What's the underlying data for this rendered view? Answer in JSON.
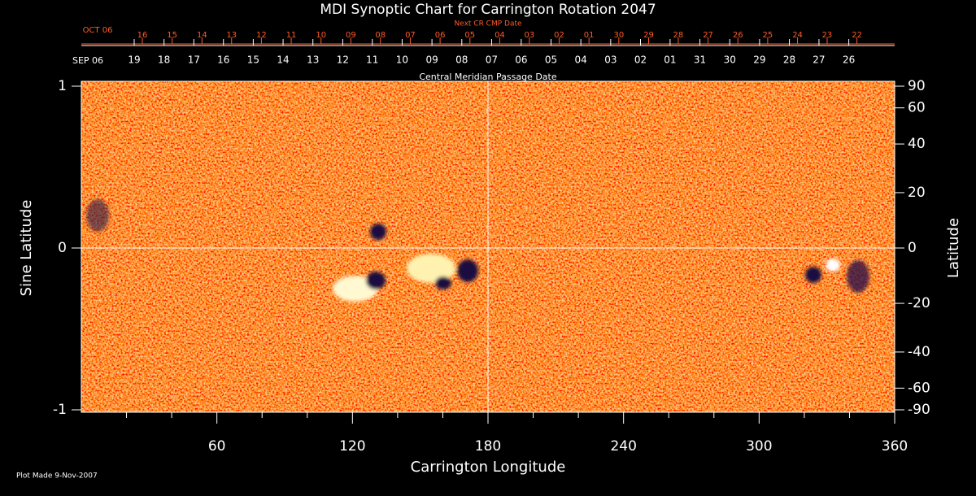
{
  "chart_data": {
    "type": "synoptic-map",
    "title": "MDI Synoptic Chart for Carrington Rotation 2047",
    "xlabel": "Carrington Longitude",
    "ylabel": "Sine Latitude",
    "y2label": "Latitude",
    "footer": "Plot Made  9-Nov-2007",
    "xlim": [
      0,
      360
    ],
    "xticks": [
      60,
      120,
      180,
      240,
      300,
      360
    ],
    "xminorticks": [
      20,
      40,
      80,
      100,
      140,
      160,
      200,
      220,
      260,
      280,
      320,
      340
    ],
    "ylim": [
      -1,
      1
    ],
    "yticks": [
      -1,
      0,
      1
    ],
    "y2scale": "sine",
    "y2lim": [
      -90,
      90
    ],
    "y2ticks": [
      90,
      60,
      40,
      20,
      0,
      -20,
      -40,
      -60,
      -90
    ],
    "crosshair": [
      180,
      0
    ],
    "top_axis_upper": {
      "title": "Next CR CMP Date",
      "start_label": "OCT 06",
      "color": "#ff5a2a",
      "ticks": [
        {
          "value": 27.0,
          "label": "16"
        },
        {
          "value": 40.2,
          "label": "15"
        },
        {
          "value": 53.4,
          "label": "14"
        },
        {
          "value": 66.5,
          "label": "13"
        },
        {
          "value": 79.7,
          "label": "12"
        },
        {
          "value": 92.9,
          "label": "11"
        },
        {
          "value": 106.1,
          "label": "10"
        },
        {
          "value": 119.3,
          "label": "09"
        },
        {
          "value": 132.4,
          "label": "08"
        },
        {
          "value": 145.6,
          "label": "07"
        },
        {
          "value": 158.8,
          "label": "06"
        },
        {
          "value": 172.0,
          "label": "05"
        },
        {
          "value": 185.2,
          "label": "04"
        },
        {
          "value": 198.3,
          "label": "03"
        },
        {
          "value": 211.5,
          "label": "02"
        },
        {
          "value": 224.7,
          "label": "01"
        },
        {
          "value": 237.9,
          "label": "30"
        },
        {
          "value": 251.1,
          "label": "29"
        },
        {
          "value": 264.2,
          "label": "28"
        },
        {
          "value": 277.4,
          "label": "27"
        },
        {
          "value": 290.6,
          "label": "26"
        },
        {
          "value": 303.8,
          "label": "25"
        },
        {
          "value": 317.0,
          "label": "24"
        },
        {
          "value": 330.1,
          "label": "23"
        },
        {
          "value": 343.3,
          "label": "22"
        }
      ]
    },
    "top_axis_lower": {
      "title": "Central Meridian Passage Date",
      "start_label": "SEP 06",
      "color": "#ffffff",
      "ticks": [
        {
          "value": 23.4,
          "label": "19"
        },
        {
          "value": 36.6,
          "label": "18"
        },
        {
          "value": 49.8,
          "label": "17"
        },
        {
          "value": 62.9,
          "label": "16"
        },
        {
          "value": 76.1,
          "label": "15"
        },
        {
          "value": 89.3,
          "label": "14"
        },
        {
          "value": 102.5,
          "label": "13"
        },
        {
          "value": 115.7,
          "label": "12"
        },
        {
          "value": 128.8,
          "label": "11"
        },
        {
          "value": 142.0,
          "label": "10"
        },
        {
          "value": 155.2,
          "label": "09"
        },
        {
          "value": 168.4,
          "label": "08"
        },
        {
          "value": 181.6,
          "label": "07"
        },
        {
          "value": 194.7,
          "label": "06"
        },
        {
          "value": 207.9,
          "label": "05"
        },
        {
          "value": 221.1,
          "label": "04"
        },
        {
          "value": 234.3,
          "label": "03"
        },
        {
          "value": 247.5,
          "label": "02"
        },
        {
          "value": 260.6,
          "label": "01"
        },
        {
          "value": 273.8,
          "label": "31"
        },
        {
          "value": 287.0,
          "label": "30"
        },
        {
          "value": 300.2,
          "label": "29"
        },
        {
          "value": 313.4,
          "label": "28"
        },
        {
          "value": 326.5,
          "label": "27"
        },
        {
          "value": 339.7,
          "label": "26"
        }
      ]
    }
  }
}
